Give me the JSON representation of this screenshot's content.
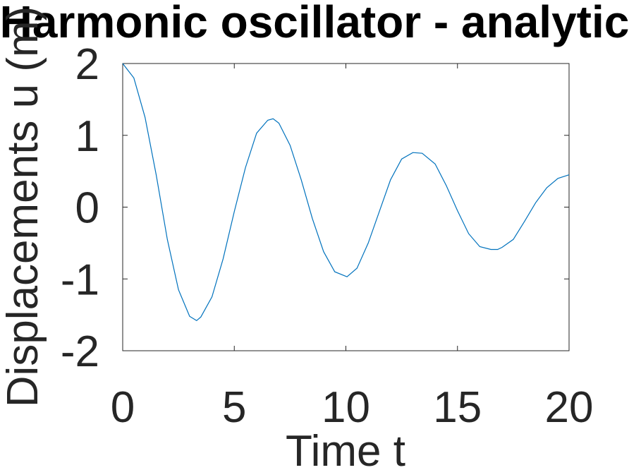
{
  "figure": {
    "title": "Harmonic oscillator - analytic",
    "xlabel": "Time t",
    "ylabel": "Displacements u (m)"
  },
  "colors": {
    "series": "#0072bd",
    "axes": "#262626",
    "background": "#ffffff"
  },
  "chart_data": {
    "type": "line",
    "title": "Harmonic oscillator - analytic",
    "xlabel": "Time t",
    "ylabel": "Displacements u (m)",
    "xlim": [
      0,
      20
    ],
    "ylim": [
      -2,
      2
    ],
    "xticks": [
      0,
      5,
      10,
      15,
      20
    ],
    "yticks": [
      -2,
      -1,
      0,
      1,
      2
    ],
    "grid": false,
    "series": [
      {
        "x": [
          0,
          0.5,
          1,
          1.5,
          2,
          2.5,
          3,
          3.31,
          3.5,
          4,
          4.5,
          5,
          5.5,
          6,
          6.5,
          6.74,
          7,
          7.5,
          8,
          8.5,
          9,
          9.5,
          10.05,
          10.5,
          11,
          11.5,
          12,
          12.5,
          13,
          13.42,
          14,
          14.5,
          15,
          15.5,
          16,
          16.5,
          16.8,
          17,
          17.5,
          18,
          18.5,
          19,
          19.5,
          20
        ],
        "y": [
          2.0,
          1.8,
          1.25,
          0.45,
          -0.45,
          -1.15,
          -1.52,
          -1.58,
          -1.53,
          -1.25,
          -0.72,
          -0.06,
          0.55,
          1.03,
          1.21,
          1.23,
          1.17,
          0.86,
          0.38,
          -0.16,
          -0.62,
          -0.9,
          -0.97,
          -0.85,
          -0.5,
          -0.06,
          0.38,
          0.67,
          0.76,
          0.75,
          0.6,
          0.3,
          -0.05,
          -0.37,
          -0.55,
          -0.59,
          -0.59,
          -0.56,
          -0.45,
          -0.2,
          0.06,
          0.27,
          0.4,
          0.45
        ]
      }
    ]
  }
}
